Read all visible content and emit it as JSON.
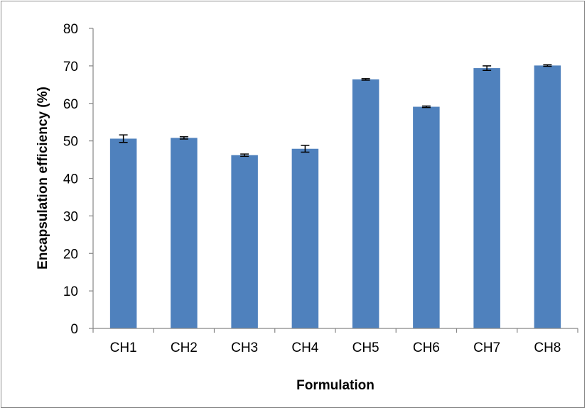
{
  "chart_data": {
    "type": "bar",
    "title": "",
    "xlabel": "Formulation",
    "ylabel": "Encapsulation efficiency (%)",
    "categories": [
      "CH1",
      "CH2",
      "CH3",
      "CH4",
      "CH5",
      "CH6",
      "CH7",
      "CH8"
    ],
    "values": [
      50.6,
      50.8,
      46.2,
      47.9,
      66.4,
      59.1,
      69.4,
      70.1
    ],
    "error": [
      1.0,
      0.3,
      0.3,
      0.9,
      0.2,
      0.2,
      0.6,
      0.2
    ],
    "ylim": [
      0,
      80
    ],
    "yticks": [
      0,
      10,
      20,
      30,
      40,
      50,
      60,
      70,
      80
    ],
    "grid": false,
    "legend": "none",
    "bar_color": "#4f81bd"
  }
}
